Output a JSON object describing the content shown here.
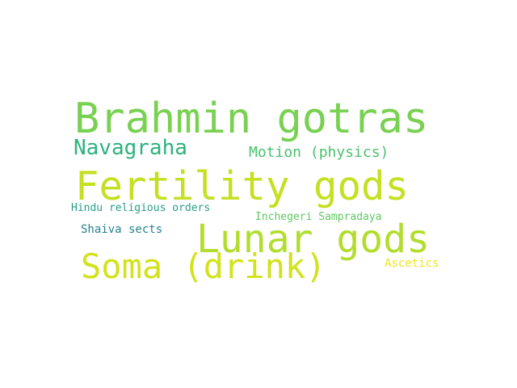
{
  "words": [
    {
      "id": "w-brahmin",
      "text": "Brahmin gotras",
      "color": "#79d151"
    },
    {
      "id": "w-navagraha",
      "text": "Navagraha",
      "color": "#2db27d"
    },
    {
      "id": "w-motion",
      "text": "Motion (physics)",
      "color": "#4ac16d"
    },
    {
      "id": "w-fertility",
      "text": "Fertility gods",
      "color": "#c5e021"
    },
    {
      "id": "w-hindu",
      "text": "Hindu religious orders",
      "color": "#2a9d8a"
    },
    {
      "id": "w-incheg",
      "text": "Inchegeri Sampradaya",
      "color": "#5ec962"
    },
    {
      "id": "w-lunar",
      "text": "Lunar gods",
      "color": "#b2dd2d"
    },
    {
      "id": "w-shaiva",
      "text": "Shaiva sects",
      "color": "#26828e"
    },
    {
      "id": "w-soma",
      "text": "Soma (drink)",
      "color": "#d2e21b"
    },
    {
      "id": "w-ascetics",
      "text": "Ascetics",
      "color": "#f1e51d"
    }
  ]
}
